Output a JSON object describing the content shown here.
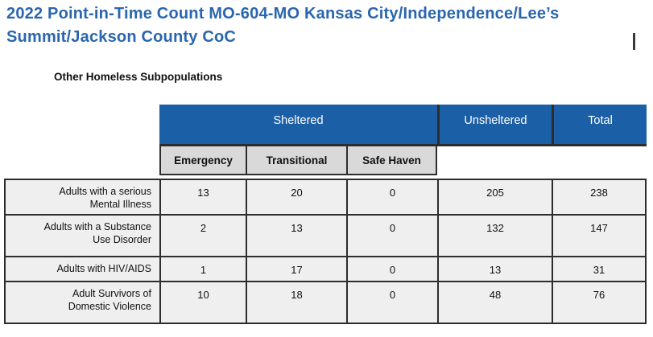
{
  "header": {
    "title_lines": [
      "2022 Point-in-Time Count MO-604-MO Kansas City/Independence/Lee’s",
      "Summit/Jackson County CoC"
    ]
  },
  "section": {
    "heading": "Other Homeless Subpopulations"
  },
  "table": {
    "column_groups": {
      "sheltered": "Sheltered",
      "unsheltered": "Unsheltered",
      "total": "Total"
    },
    "sub_columns": [
      "Emergency",
      "Transitional",
      "Safe Haven"
    ],
    "rows": [
      {
        "label": "Adults with a serious Mental Illness",
        "values": [
          13,
          20,
          0,
          205,
          238
        ]
      },
      {
        "label": "Adults with a Substance Use Disorder",
        "values": [
          2,
          13,
          0,
          132,
          147
        ]
      },
      {
        "label": "Adults with HIV/AIDS",
        "values": [
          1,
          17,
          0,
          13,
          31
        ]
      },
      {
        "label": "Adult Survivors of Domestic Violence",
        "values": [
          10,
          18,
          0,
          48,
          76
        ]
      }
    ]
  },
  "colors": {
    "title_blue": "#2a66ae",
    "header_blue": "#1b5fa6",
    "subheader_gray": "#d9d9d9",
    "cell_gray": "#efefef",
    "border_dark": "#2d2d2d"
  }
}
